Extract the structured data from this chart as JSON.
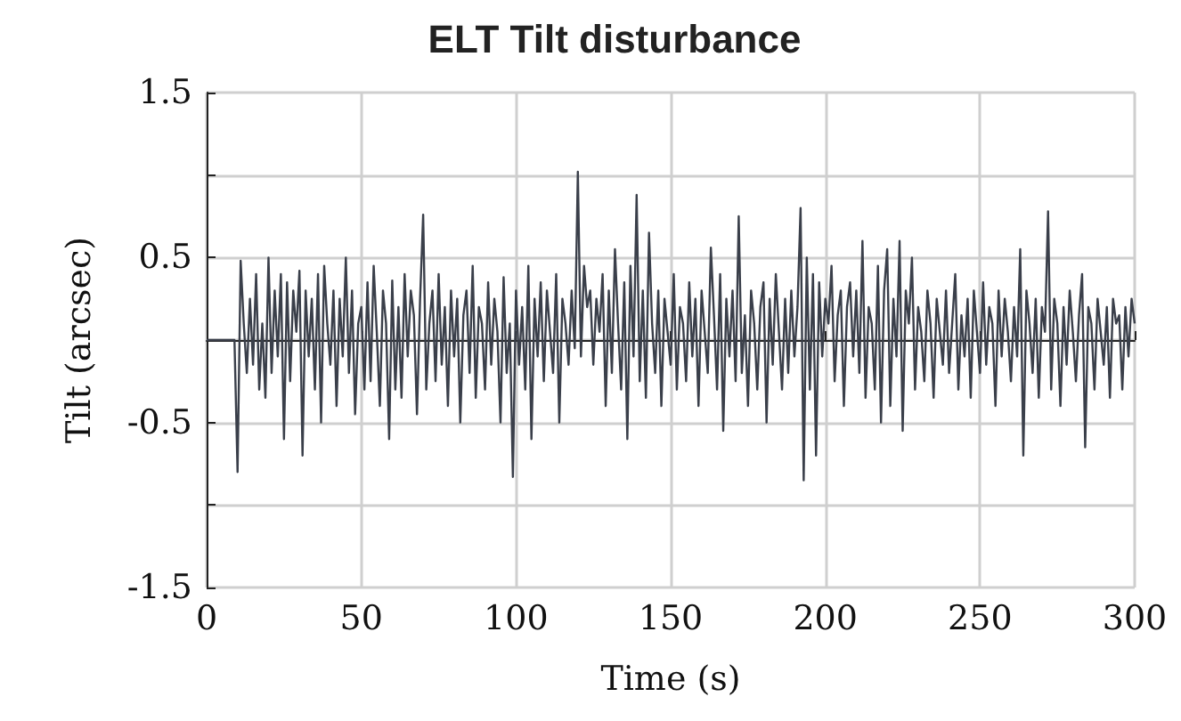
{
  "chart_data": {
    "type": "line",
    "title": "ELT Tilt disturbance",
    "xlabel": "Time (s)",
    "ylabel": "Tilt (arcsec)",
    "xlim": [
      0,
      300
    ],
    "xticks": [
      0,
      50,
      100,
      150,
      200,
      250,
      300
    ],
    "ylim": [
      -1.5,
      1.5
    ],
    "yticks": [
      -1.5,
      {
        "value": -1,
        "label": null
      },
      -0.5,
      {
        "value": 0,
        "label": null
      },
      0.5,
      {
        "value": 1,
        "label": null
      },
      1.5
    ],
    "grid": true,
    "series": [
      {
        "color": "#3a3f4a",
        "x": [
          0,
          9,
          10,
          11,
          12,
          13,
          14,
          15,
          16,
          17,
          18,
          19,
          20,
          21,
          22,
          23,
          24,
          25,
          26,
          27,
          28,
          29,
          30,
          31,
          32,
          33,
          34,
          35,
          36,
          37,
          38,
          39,
          40,
          41,
          42,
          43,
          44,
          45,
          46,
          47,
          48,
          49,
          50,
          51,
          52,
          53,
          54,
          55,
          56,
          57,
          58,
          59,
          60,
          61,
          62,
          63,
          64,
          65,
          66,
          67,
          68,
          69,
          70,
          71,
          72,
          73,
          74,
          75,
          76,
          77,
          78,
          79,
          80,
          81,
          82,
          83,
          84,
          85,
          86,
          87,
          88,
          89,
          90,
          91,
          92,
          93,
          94,
          95,
          96,
          97,
          98,
          99,
          100,
          101,
          102,
          103,
          104,
          105,
          106,
          107,
          108,
          109,
          110,
          111,
          112,
          113,
          114,
          115,
          116,
          117,
          118,
          119,
          120,
          121,
          122,
          123,
          124,
          125,
          126,
          127,
          128,
          129,
          130,
          131,
          132,
          133,
          134,
          135,
          136,
          137,
          138,
          139,
          140,
          141,
          142,
          143,
          144,
          145,
          146,
          147,
          148,
          149,
          150,
          151,
          152,
          153,
          154,
          155,
          156,
          157,
          158,
          159,
          160,
          161,
          162,
          163,
          164,
          165,
          166,
          167,
          168,
          169,
          170,
          171,
          172,
          173,
          174,
          175,
          176,
          177,
          178,
          179,
          180,
          181,
          182,
          183,
          184,
          185,
          186,
          187,
          188,
          189,
          190,
          191,
          192,
          193,
          194,
          195,
          196,
          197,
          198,
          199,
          200,
          201,
          202,
          203,
          204,
          205,
          206,
          207,
          208,
          209,
          210,
          211,
          212,
          213,
          214,
          215,
          216,
          217,
          218,
          219,
          220,
          221,
          222,
          223,
          224,
          225,
          226,
          227,
          228,
          229,
          230,
          231,
          232,
          233,
          234,
          235,
          236,
          237,
          238,
          239,
          240,
          241,
          242,
          243,
          244,
          245,
          246,
          247,
          248,
          249,
          250,
          251,
          252,
          253,
          254,
          255,
          256,
          257,
          258,
          259,
          260,
          261,
          262,
          263,
          264,
          265,
          266,
          267,
          268,
          269,
          270,
          271,
          272,
          273,
          274,
          275,
          276,
          277,
          278,
          279,
          280,
          281,
          282,
          283,
          284,
          285,
          286,
          287,
          288,
          289,
          290,
          291,
          292,
          293,
          294,
          295,
          296,
          297,
          298,
          299,
          300
        ],
        "values": [
          0,
          0,
          -0.8,
          0.48,
          0.1,
          -0.2,
          0.25,
          -0.15,
          0.4,
          -0.3,
          0.1,
          -0.35,
          0.5,
          -0.2,
          0.3,
          -0.1,
          0.4,
          -0.6,
          0.35,
          -0.25,
          0.3,
          0.05,
          0.42,
          -0.7,
          0.3,
          -0.1,
          0.25,
          -0.3,
          0.4,
          -0.5,
          0.45,
          0.1,
          -0.15,
          0.3,
          -0.4,
          0.25,
          -0.1,
          0.5,
          -0.2,
          0.3,
          -0.45,
          0.1,
          0.2,
          -0.3,
          0.35,
          -0.25,
          0.45,
          0.05,
          -0.4,
          0.3,
          0.1,
          -0.6,
          0.36,
          -0.3,
          0.2,
          -0.35,
          0.4,
          -0.1,
          0.3,
          0.15,
          -0.45,
          0.25,
          0.76,
          -0.3,
          0.1,
          0.3,
          -0.25,
          0.4,
          -0.15,
          0.2,
          -0.4,
          0.3,
          -0.1,
          0.25,
          -0.5,
          0.15,
          0.3,
          -0.2,
          0.45,
          -0.35,
          0.2,
          0.1,
          -0.3,
          0.35,
          -0.15,
          0.25,
          0.05,
          -0.5,
          0.38,
          -0.2,
          0.1,
          -0.83,
          0.3,
          -0.15,
          0.2,
          -0.3,
          0.45,
          -0.6,
          0.25,
          -0.1,
          0.35,
          -0.25,
          0.3,
          0.05,
          -0.2,
          0.4,
          -0.5,
          0.25,
          0.1,
          -0.15,
          0.3,
          -0.05,
          1.02,
          -0.1,
          0.45,
          0.2,
          0.3,
          -0.15,
          0.25,
          0.05,
          0.4,
          -0.4,
          0.3,
          -0.2,
          0.55,
          0.1,
          -0.3,
          0.35,
          -0.6,
          0.45,
          -0.1,
          0.88,
          -0.25,
          0.3,
          -0.35,
          0.65,
          0.1,
          -0.2,
          0.3,
          -0.4,
          0.25,
          0.05,
          -0.15,
          0.4,
          -0.3,
          0.2,
          0.1,
          -0.25,
          0.35,
          -0.1,
          0.25,
          -0.4,
          0.3,
          0.05,
          -0.2,
          0.56,
          0.15,
          -0.3,
          0.4,
          -0.55,
          0.25,
          -0.1,
          0.3,
          -0.25,
          0.75,
          -0.2,
          0.15,
          -0.4,
          0.3,
          0.1,
          -0.3,
          0.2,
          0.35,
          -0.5,
          0.25,
          -0.15,
          0.4,
          0.05,
          -0.3,
          0.25,
          -0.2,
          0.3,
          -0.1,
          0.2,
          0.8,
          -0.85,
          0.5,
          -0.3,
          0.4,
          -0.7,
          0.35,
          -0.1,
          0.25,
          0.1,
          0.45,
          -0.25,
          0.15,
          0.3,
          -0.4,
          0.2,
          0.35,
          -0.1,
          0.3,
          -0.2,
          0.6,
          -0.35,
          0.2,
          0.1,
          -0.3,
          0.45,
          -0.5,
          0.3,
          0.55,
          -0.4,
          0.25,
          -0.1,
          0.6,
          -0.55,
          0.3,
          0.1,
          0.5,
          -0.3,
          0.2,
          0.05,
          -0.25,
          0.3,
          0.1,
          -0.35,
          0.25,
          0.05,
          -0.15,
          0.3,
          -0.2,
          0.1,
          0.4,
          -0.3,
          0.15,
          -0.1,
          0.25,
          -0.35,
          0.3,
          0.05,
          -0.2,
          0.35,
          -0.15,
          0.2,
          0.1,
          -0.4,
          0.3,
          -0.1,
          0.25,
          0.05,
          -0.25,
          0.2,
          -0.1,
          0.55,
          -0.7,
          0.3,
          0.1,
          -0.2,
          0.25,
          -0.35,
          0.2,
          0.05,
          0.78,
          -0.3,
          0.25,
          0.1,
          -0.4,
          0.2,
          -0.15,
          0.3,
          0.05,
          -0.25,
          0.15,
          0.4,
          -0.65,
          0.2,
          0.1,
          -0.3,
          0.25,
          0.05,
          -0.15,
          0.2,
          -0.35,
          0.25,
          0.1,
          0.15,
          -0.3,
          0.2,
          -0.1,
          0.25,
          0.1
        ]
      }
    ]
  }
}
